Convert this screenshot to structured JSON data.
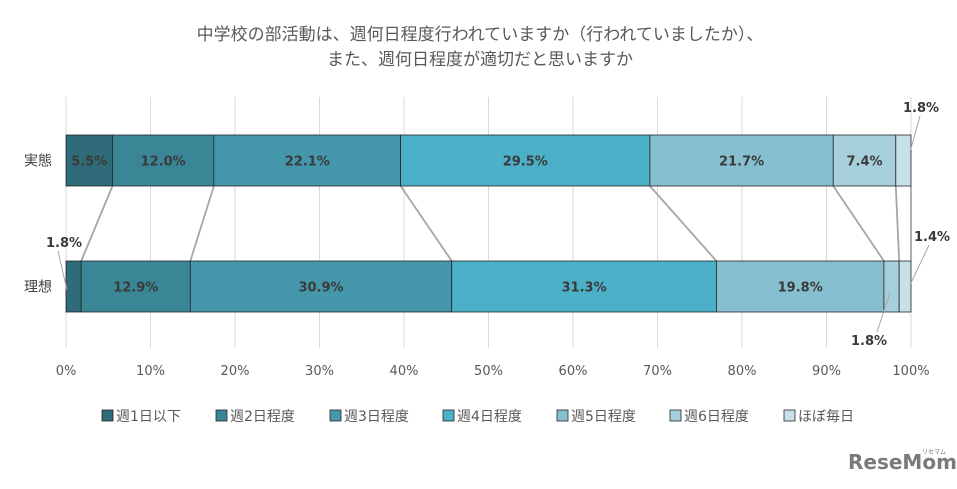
{
  "chart_data": {
    "type": "bar",
    "orientation": "horizontal-stacked-100",
    "title_lines": [
      "中学校の部活動は、週何日程度行われていますか（行われていましたか）、",
      "また、週何日程度が適切だと思いますか"
    ],
    "categories": [
      "実態",
      "理想"
    ],
    "series": [
      {
        "name": "週1日以下",
        "color": "#2f6b78",
        "values": [
          5.5,
          1.8
        ],
        "labels": [
          "5.5%",
          "1.8%"
        ]
      },
      {
        "name": "週2日程度",
        "color": "#3a8596",
        "values": [
          12.0,
          12.9
        ],
        "labels": [
          "12.0%",
          "12.9%"
        ]
      },
      {
        "name": "週3日程度",
        "color": "#4597ac",
        "values": [
          22.1,
          30.9
        ],
        "labels": [
          "22.1%",
          "30.9%"
        ]
      },
      {
        "name": "週4日程度",
        "color": "#4bb0c8",
        "values": [
          29.5,
          31.3
        ],
        "labels": [
          "29.5%",
          "31.3%"
        ]
      },
      {
        "name": "週5日程度",
        "color": "#86bfd0",
        "values": [
          21.7,
          19.8
        ],
        "labels": [
          "21.7%",
          "19.8%"
        ]
      },
      {
        "name": "週6日程度",
        "color": "#a6d0dc",
        "values": [
          7.4,
          1.8
        ],
        "labels": [
          "7.4%",
          "1.8%"
        ]
      },
      {
        "name": "ほぼ毎日",
        "color": "#c7e1ea",
        "values": [
          1.8,
          1.4
        ],
        "labels": [
          "1.8%",
          "1.4%"
        ]
      }
    ],
    "xticks": [
      "0%",
      "10%",
      "20%",
      "30%",
      "40%",
      "50%",
      "60%",
      "70%",
      "80%",
      "90%",
      "100%"
    ],
    "xlim": [
      0,
      100
    ],
    "grid": true,
    "legend_position": "bottom"
  },
  "brand": {
    "logo_text": "ReseMom",
    "logo_sub": "リセマム"
  }
}
